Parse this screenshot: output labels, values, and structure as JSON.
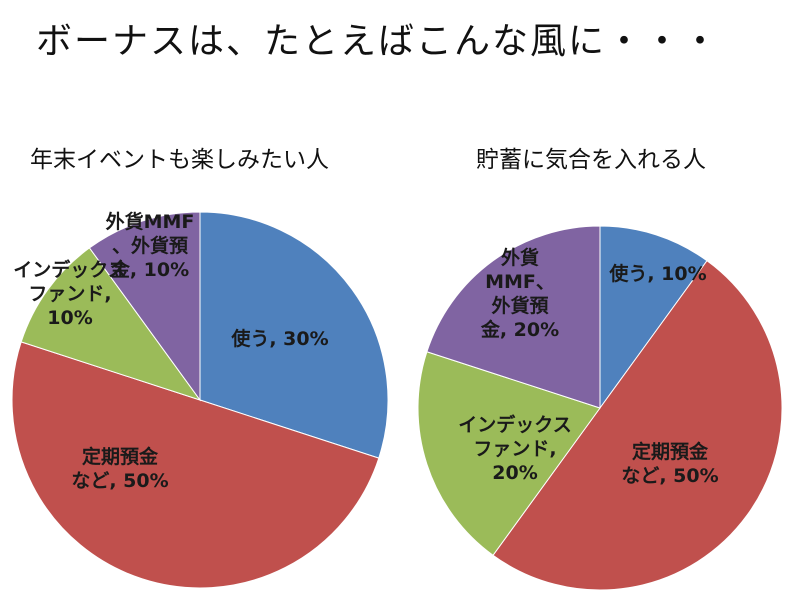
{
  "title": "ボーナスは、たとえばこんな風に・・・",
  "chart_data": [
    {
      "type": "pie",
      "title": "年末イベントも楽しみたい人",
      "slices": [
        {
          "label": "使う, 30%",
          "label_lines": [
            "使う, 30%"
          ],
          "value": 30,
          "color": "#4f81bd"
        },
        {
          "label": "定期預金など, 50%",
          "label_lines": [
            "定期預金",
            "など, 50%"
          ],
          "value": 50,
          "color": "#c0504d"
        },
        {
          "label": "インデックスファンド, 10%",
          "label_lines": [
            "インデックス",
            "ファンド,",
            "10%"
          ],
          "value": 10,
          "color": "#9bbb59"
        },
        {
          "label": "外貨MMF、外貨預金, 10%",
          "label_lines": [
            "外貨MMF",
            "、外貨預",
            "金, 10%"
          ],
          "value": 10,
          "color": "#8064a2"
        }
      ]
    },
    {
      "type": "pie",
      "title": "貯蓄に気合を入れる人",
      "slices": [
        {
          "label": "使う, 10%",
          "label_lines": [
            "使う, 10%"
          ],
          "value": 10,
          "color": "#4f81bd"
        },
        {
          "label": "定期預金など, 50%",
          "label_lines": [
            "定期預金",
            "など, 50%"
          ],
          "value": 50,
          "color": "#c0504d"
        },
        {
          "label": "インデックスファンド, 20%",
          "label_lines": [
            "インデックス",
            "ファンド,",
            "20%"
          ],
          "value": 20,
          "color": "#9bbb59"
        },
        {
          "label": "外貨MMF、外貨預金, 20%",
          "label_lines": [
            "外貨",
            "MMF、",
            "外貨預",
            "金, 20%"
          ],
          "value": 20,
          "color": "#8064a2"
        }
      ]
    }
  ]
}
